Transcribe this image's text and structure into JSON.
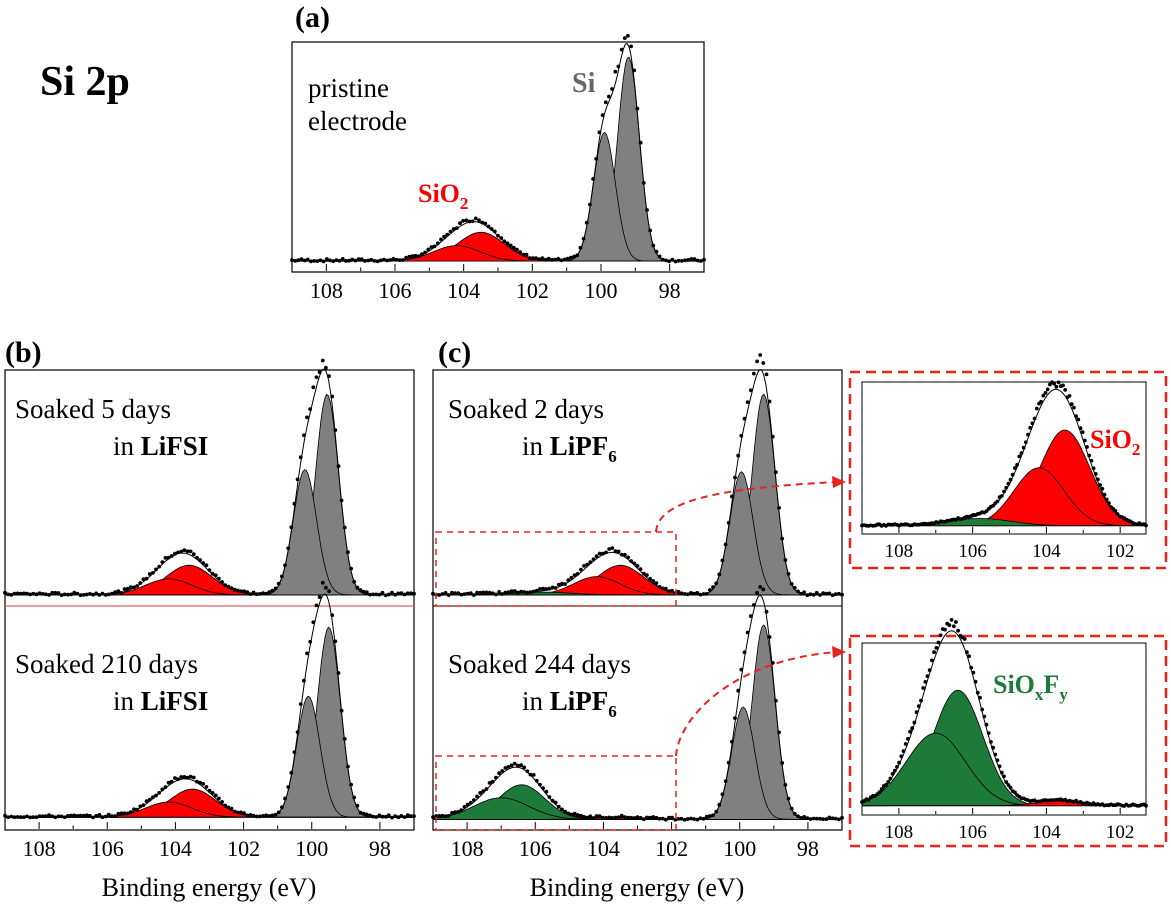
{
  "figure": {
    "element_label": "Si 2p",
    "xlabel": "Binding energy (eV)"
  },
  "colors": {
    "si_fill": "#808080",
    "sio2_fill": "#ff0000",
    "sioxfy_fill": "#1e7a38",
    "sio2_label": "#ff0000",
    "si_label": "#666666",
    "sioxfy_label": "#1e7a38",
    "callout": "#e8231e"
  },
  "chart_data": [
    {
      "id": "a",
      "panel_label": "(a)",
      "type": "area",
      "ann1": "pristine",
      "ann2": "electrode",
      "peak_si_label": "Si",
      "peak_sio2_label": "SiO",
      "xlim": [
        109,
        97
      ],
      "ylim": [
        0,
        1
      ],
      "xticks": [
        "108",
        "106",
        "104",
        "102",
        "100",
        "98"
      ],
      "baseline": 0.04,
      "components": [
        {
          "species": "Si",
          "fill": "si",
          "center": 99.2,
          "fwhm": 0.75,
          "height": 0.92
        },
        {
          "species": "Si",
          "fill": "si",
          "center": 99.9,
          "fwhm": 0.75,
          "height": 0.58
        },
        {
          "species": "SiO2",
          "fill": "sio2",
          "center": 103.5,
          "fwhm": 1.6,
          "height": 0.13
        },
        {
          "species": "SiO2",
          "fill": "sio2",
          "center": 104.2,
          "fwhm": 1.6,
          "height": 0.07
        }
      ]
    },
    {
      "id": "b1",
      "panel_label": "(b)",
      "type": "area",
      "ann1": "Soaked 5 days",
      "ann2": "in ",
      "ann2_bold": "LiFSI",
      "xlim": [
        109,
        97
      ],
      "ylim": [
        0,
        1
      ],
      "baseline": 0.04,
      "components": [
        {
          "species": "Si",
          "fill": "si",
          "center": 99.55,
          "fwhm": 0.8,
          "height": 0.88
        },
        {
          "species": "Si",
          "fill": "si",
          "center": 100.2,
          "fwhm": 0.8,
          "height": 0.55
        },
        {
          "species": "SiO2",
          "fill": "sio2",
          "center": 103.6,
          "fwhm": 1.6,
          "height": 0.13
        },
        {
          "species": "SiO2",
          "fill": "sio2",
          "center": 104.2,
          "fwhm": 1.6,
          "height": 0.07
        }
      ]
    },
    {
      "id": "b2",
      "type": "area",
      "ann1": "Soaked 210 days",
      "ann2": "in ",
      "ann2_bold": "LiFSI",
      "xlim": [
        109,
        97
      ],
      "ylim": [
        0,
        1
      ],
      "xticks": [
        "108",
        "106",
        "104",
        "102",
        "100",
        "98"
      ],
      "baseline": 0.05,
      "components": [
        {
          "species": "Si",
          "fill": "si",
          "center": 99.5,
          "fwhm": 0.8,
          "height": 0.88
        },
        {
          "species": "Si",
          "fill": "si",
          "center": 100.1,
          "fwhm": 0.8,
          "height": 0.56
        },
        {
          "species": "SiO2",
          "fill": "sio2",
          "center": 103.5,
          "fwhm": 1.6,
          "height": 0.13
        },
        {
          "species": "SiO2",
          "fill": "sio2",
          "center": 104.2,
          "fwhm": 1.6,
          "height": 0.07
        }
      ]
    },
    {
      "id": "c1",
      "panel_label": "(c)",
      "type": "area",
      "ann1": "Soaked 2 days",
      "ann2": "in ",
      "ann2_bold": "LiPF",
      "xlim": [
        109,
        97
      ],
      "ylim": [
        0,
        1
      ],
      "baseline": 0.04,
      "components": [
        {
          "species": "Si",
          "fill": "si",
          "center": 99.3,
          "fwhm": 0.8,
          "height": 0.88
        },
        {
          "species": "Si",
          "fill": "si",
          "center": 99.95,
          "fwhm": 0.8,
          "height": 0.54
        },
        {
          "species": "SiO2",
          "fill": "sio2",
          "center": 103.5,
          "fwhm": 1.6,
          "height": 0.13
        },
        {
          "species": "SiO2",
          "fill": "sio2",
          "center": 104.2,
          "fwhm": 1.6,
          "height": 0.08
        },
        {
          "species": "SiOxFy",
          "fill": "sioxfy",
          "center": 105.8,
          "fwhm": 2.0,
          "height": 0.012
        }
      ]
    },
    {
      "id": "c2",
      "type": "area",
      "ann1": "Soaked 244 days",
      "ann2": "in ",
      "ann2_bold": "LiPF",
      "xlim": [
        109,
        97
      ],
      "ylim": [
        0,
        1
      ],
      "xticks": [
        "108",
        "106",
        "104",
        "102",
        "100",
        "98"
      ],
      "baseline": 0.04,
      "components": [
        {
          "species": "Si",
          "fill": "si",
          "center": 99.3,
          "fwhm": 0.8,
          "height": 0.9
        },
        {
          "species": "Si",
          "fill": "si",
          "center": 99.9,
          "fwhm": 0.8,
          "height": 0.52
        },
        {
          "species": "SiOxFy",
          "fill": "sioxfy",
          "center": 106.4,
          "fwhm": 1.6,
          "height": 0.16
        },
        {
          "species": "SiOxFy",
          "fill": "sioxfy",
          "center": 107.0,
          "fwhm": 1.9,
          "height": 0.1
        },
        {
          "species": "SiO2",
          "fill": "sio2",
          "center": 103.7,
          "fwhm": 1.4,
          "height": 0.008
        }
      ]
    },
    {
      "id": "z1",
      "type": "area",
      "zoom_of": "c1",
      "label": "SiO",
      "xlim": [
        109,
        101.3
      ],
      "ylim": [
        0,
        1
      ],
      "xticks": [
        "108",
        "106",
        "104",
        "102"
      ],
      "baseline": 0.05,
      "components": [
        {
          "species": "SiO2",
          "fill": "sio2",
          "center": 103.5,
          "fwhm": 1.6,
          "height": 0.66
        },
        {
          "species": "SiO2",
          "fill": "sio2",
          "center": 104.2,
          "fwhm": 1.6,
          "height": 0.4
        },
        {
          "species": "SiOxFy",
          "fill": "sioxfy",
          "center": 105.8,
          "fwhm": 2.0,
          "height": 0.05
        }
      ]
    },
    {
      "id": "z2",
      "type": "area",
      "zoom_of": "c2",
      "label_si": "SiO",
      "label_x": "x",
      "label_f": "F",
      "label_y": "y",
      "xlim": [
        109,
        101.3
      ],
      "ylim": [
        0,
        1
      ],
      "xticks": [
        "108",
        "106",
        "104",
        "102"
      ],
      "baseline": 0.05,
      "components": [
        {
          "species": "SiOxFy",
          "fill": "sioxfy",
          "center": 106.4,
          "fwhm": 1.6,
          "height": 0.7
        },
        {
          "species": "SiOxFy",
          "fill": "sioxfy",
          "center": 107.0,
          "fwhm": 1.9,
          "height": 0.44
        },
        {
          "species": "SiO2",
          "fill": "sio2",
          "center": 103.7,
          "fwhm": 1.4,
          "height": 0.03
        }
      ]
    }
  ]
}
